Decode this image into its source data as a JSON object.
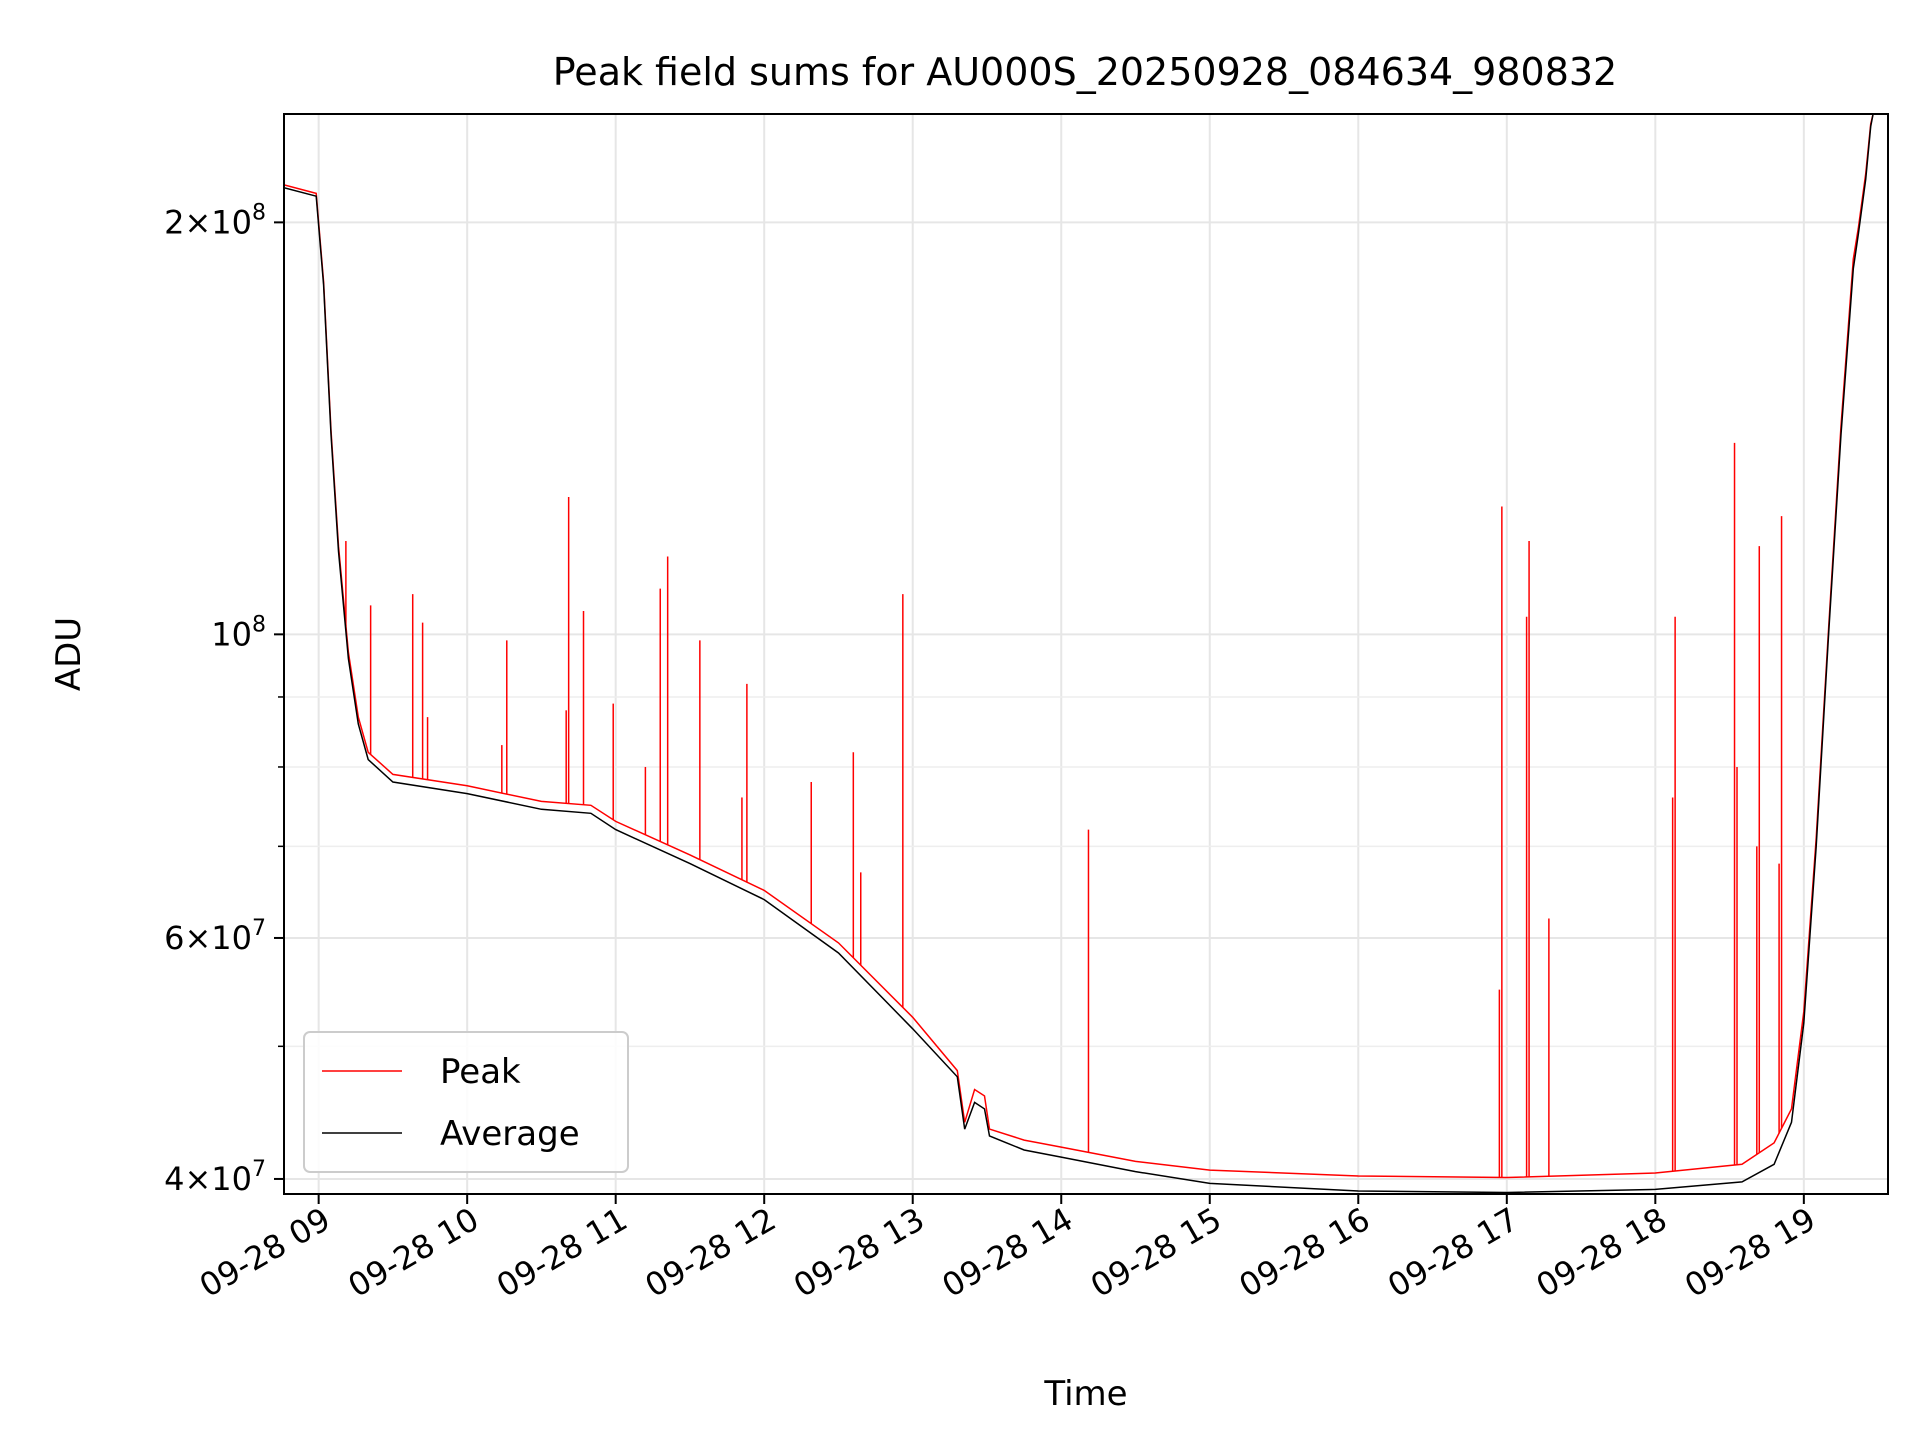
{
  "chart_data": {
    "type": "line",
    "title": "Peak field sums for AU000S_20250928_084634_980832",
    "xlabel": "Time",
    "ylabel": "ADU",
    "y_scale": "log",
    "grid": true,
    "legend_position": "lower-left",
    "x_range": [
      "2025-09-28 08:46",
      "2025-09-28 19:34"
    ],
    "ylim": [
      39000000,
      240000000
    ],
    "x_ticks": [
      {
        "t": "2025-09-28 09:00",
        "label": "09-28 09"
      },
      {
        "t": "2025-09-28 10:00",
        "label": "09-28 10"
      },
      {
        "t": "2025-09-28 11:00",
        "label": "09-28 11"
      },
      {
        "t": "2025-09-28 12:00",
        "label": "09-28 12"
      },
      {
        "t": "2025-09-28 13:00",
        "label": "09-28 13"
      },
      {
        "t": "2025-09-28 14:00",
        "label": "09-28 14"
      },
      {
        "t": "2025-09-28 15:00",
        "label": "09-28 15"
      },
      {
        "t": "2025-09-28 16:00",
        "label": "09-28 16"
      },
      {
        "t": "2025-09-28 17:00",
        "label": "09-28 17"
      },
      {
        "t": "2025-09-28 18:00",
        "label": "09-28 18"
      },
      {
        "t": "2025-09-28 19:00",
        "label": "09-28 19"
      }
    ],
    "y_ticks": [
      {
        "value": 40000000,
        "mantissa": "4",
        "exponent": "7"
      },
      {
        "value": 60000000,
        "mantissa": "6",
        "exponent": "7"
      },
      {
        "value": 100000000,
        "mantissa": "",
        "exponent": "8"
      },
      {
        "value": 200000000,
        "mantissa": "2",
        "exponent": "8"
      }
    ],
    "y_minor_ticks": [
      50000000,
      70000000,
      80000000,
      90000000
    ],
    "series": [
      {
        "name": "Average",
        "color": "#000000",
        "points": [
          [
            "2025-09-28 08:46",
            212000000
          ],
          [
            "2025-09-28 08:59",
            209000000
          ],
          [
            "2025-09-28 09:02",
            180000000
          ],
          [
            "2025-09-28 09:05",
            140000000
          ],
          [
            "2025-09-28 09:08",
            115000000
          ],
          [
            "2025-09-28 09:12",
            96000000
          ],
          [
            "2025-09-28 09:16",
            86000000
          ],
          [
            "2025-09-28 09:20",
            81000000
          ],
          [
            "2025-09-28 09:30",
            78000000
          ],
          [
            "2025-09-28 10:00",
            76500000
          ],
          [
            "2025-09-28 10:30",
            74500000
          ],
          [
            "2025-09-28 10:50",
            74000000
          ],
          [
            "2025-09-28 11:00",
            72000000
          ],
          [
            "2025-09-28 11:30",
            68000000
          ],
          [
            "2025-09-28 12:00",
            64000000
          ],
          [
            "2025-09-28 12:30",
            58500000
          ],
          [
            "2025-09-28 13:00",
            51500000
          ],
          [
            "2025-09-28 13:18",
            47500000
          ],
          [
            "2025-09-28 13:21",
            43500000
          ],
          [
            "2025-09-28 13:25",
            45500000
          ],
          [
            "2025-09-28 13:29",
            45000000
          ],
          [
            "2025-09-28 13:31",
            43000000
          ],
          [
            "2025-09-28 13:45",
            42000000
          ],
          [
            "2025-09-28 14:00",
            41500000
          ],
          [
            "2025-09-28 14:30",
            40500000
          ],
          [
            "2025-09-28 15:00",
            39700000
          ],
          [
            "2025-09-28 16:00",
            39200000
          ],
          [
            "2025-09-28 17:00",
            39100000
          ],
          [
            "2025-09-28 18:00",
            39300000
          ],
          [
            "2025-09-28 18:35",
            39800000
          ],
          [
            "2025-09-28 18:48",
            41000000
          ],
          [
            "2025-09-28 18:55",
            44000000
          ],
          [
            "2025-09-28 19:00",
            52000000
          ],
          [
            "2025-09-28 19:05",
            70000000
          ],
          [
            "2025-09-28 19:10",
            100000000
          ],
          [
            "2025-09-28 19:15",
            140000000
          ],
          [
            "2025-09-28 19:20",
            185000000
          ],
          [
            "2025-09-28 19:22",
            196000000
          ],
          [
            "2025-09-28 19:25",
            215000000
          ],
          [
            "2025-09-28 19:27",
            235000000
          ],
          [
            "2025-09-28 19:28",
            240000000
          ]
        ]
      },
      {
        "name": "Peak",
        "color": "#ff0000",
        "points": [
          [
            "2025-09-28 08:46",
            213000000
          ],
          [
            "2025-09-28 08:59",
            210000000
          ],
          [
            "2025-09-28 09:02",
            181000000
          ],
          [
            "2025-09-28 09:05",
            141000000
          ],
          [
            "2025-09-28 09:08",
            116000000
          ],
          [
            "2025-09-28 09:12",
            97000000
          ],
          [
            "2025-09-28 09:16",
            87000000
          ],
          [
            "2025-09-28 09:20",
            82000000
          ],
          [
            "2025-09-28 09:30",
            79000000
          ],
          [
            "2025-09-28 10:00",
            77500000
          ],
          [
            "2025-09-28 10:30",
            75500000
          ],
          [
            "2025-09-28 10:50",
            75000000
          ],
          [
            "2025-09-28 11:00",
            73000000
          ],
          [
            "2025-09-28 11:30",
            69000000
          ],
          [
            "2025-09-28 12:00",
            65000000
          ],
          [
            "2025-09-28 12:30",
            59500000
          ],
          [
            "2025-09-28 13:00",
            52500000
          ],
          [
            "2025-09-28 13:18",
            48000000
          ],
          [
            "2025-09-28 13:21",
            44000000
          ],
          [
            "2025-09-28 13:25",
            46500000
          ],
          [
            "2025-09-28 13:29",
            46000000
          ],
          [
            "2025-09-28 13:31",
            43500000
          ],
          [
            "2025-09-28 13:45",
            42700000
          ],
          [
            "2025-09-28 14:00",
            42200000
          ],
          [
            "2025-09-28 14:30",
            41200000
          ],
          [
            "2025-09-28 15:00",
            40600000
          ],
          [
            "2025-09-28 16:00",
            40200000
          ],
          [
            "2025-09-28 17:00",
            40100000
          ],
          [
            "2025-09-28 18:00",
            40400000
          ],
          [
            "2025-09-28 18:35",
            41000000
          ],
          [
            "2025-09-28 18:48",
            42500000
          ],
          [
            "2025-09-28 18:55",
            45000000
          ],
          [
            "2025-09-28 19:00",
            53000000
          ],
          [
            "2025-09-28 19:05",
            71000000
          ],
          [
            "2025-09-28 19:10",
            101000000
          ],
          [
            "2025-09-28 19:15",
            142000000
          ],
          [
            "2025-09-28 19:20",
            188000000
          ],
          [
            "2025-09-28 19:22",
            198000000
          ],
          [
            "2025-09-28 19:25",
            217000000
          ],
          [
            "2025-09-28 19:27",
            236000000
          ],
          [
            "2025-09-28 19:28",
            240000000
          ]
        ],
        "spikes": [
          [
            "2025-09-28 09:11",
            117000000
          ],
          [
            "2025-09-28 09:21",
            105000000
          ],
          [
            "2025-09-28 09:38",
            107000000
          ],
          [
            "2025-09-28 09:42",
            102000000
          ],
          [
            "2025-09-28 09:44",
            87000000
          ],
          [
            "2025-09-28 10:16",
            99000000
          ],
          [
            "2025-09-28 10:14",
            83000000
          ],
          [
            "2025-09-28 10:40",
            88000000
          ],
          [
            "2025-09-28 10:41",
            126000000
          ],
          [
            "2025-09-28 10:47",
            104000000
          ],
          [
            "2025-09-28 10:59",
            89000000
          ],
          [
            "2025-09-28 11:12",
            80000000
          ],
          [
            "2025-09-28 11:18",
            108000000
          ],
          [
            "2025-09-28 11:21",
            114000000
          ],
          [
            "2025-09-28 11:34",
            99000000
          ],
          [
            "2025-09-28 11:51",
            76000000
          ],
          [
            "2025-09-28 11:53",
            92000000
          ],
          [
            "2025-09-28 12:19",
            78000000
          ],
          [
            "2025-09-28 12:36",
            82000000
          ],
          [
            "2025-09-28 12:39",
            67000000
          ],
          [
            "2025-09-28 12:56",
            107000000
          ],
          [
            "2025-09-28 14:11",
            72000000
          ],
          [
            "2025-09-28 16:57",
            55000000
          ],
          [
            "2025-09-28 16:58",
            124000000
          ],
          [
            "2025-09-28 17:08",
            103000000
          ],
          [
            "2025-09-28 17:09",
            117000000
          ],
          [
            "2025-09-28 17:17",
            62000000
          ],
          [
            "2025-09-28 18:07",
            76000000
          ],
          [
            "2025-09-28 18:08",
            103000000
          ],
          [
            "2025-09-28 18:32",
            138000000
          ],
          [
            "2025-09-28 18:33",
            80000000
          ],
          [
            "2025-09-28 18:41",
            70000000
          ],
          [
            "2025-09-28 18:42",
            116000000
          ],
          [
            "2025-09-28 18:50",
            68000000
          ],
          [
            "2025-09-28 18:51",
            122000000
          ],
          [
            "2025-09-28 19:18",
            168000000
          ]
        ]
      }
    ]
  }
}
